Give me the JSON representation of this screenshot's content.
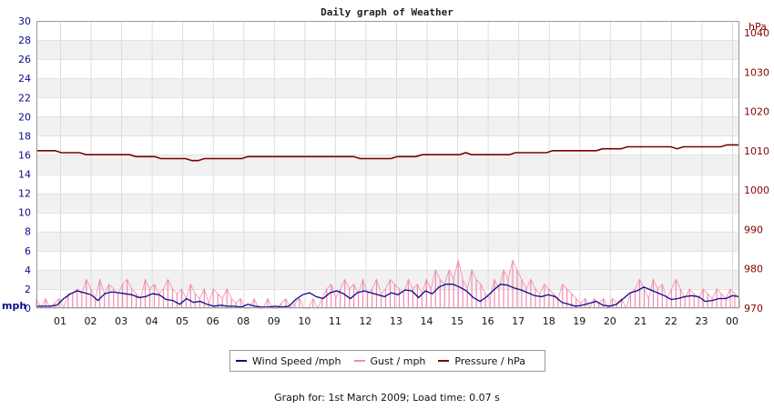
{
  "chart_data": {
    "type": "line",
    "title": "Daily graph of Weather",
    "left_axis": {
      "unit": "mph",
      "ylim": [
        0,
        30
      ],
      "ticks": [
        "0",
        "2",
        "4",
        "6",
        "8",
        "10",
        "12",
        "14",
        "16",
        "18",
        "20",
        "22",
        "24",
        "26",
        "28",
        "30"
      ]
    },
    "right_axis": {
      "unit": "hPa",
      "ylim": [
        970,
        1043
      ],
      "ticks": [
        "970",
        "980",
        "990",
        "1000",
        "1010",
        "1020",
        "1030",
        "1040"
      ]
    },
    "x_ticks": [
      "01",
      "02",
      "03",
      "04",
      "05",
      "06",
      "08",
      "09",
      "10",
      "11",
      "12",
      "13",
      "14",
      "15",
      "16",
      "17",
      "18",
      "19",
      "20",
      "21",
      "22",
      "23",
      "00"
    ],
    "grid": "horizontal bands + vertical lines",
    "series": [
      {
        "name": "Wind Speed /mph",
        "color": "#0b0b8a",
        "axis": "left",
        "values": [
          0.2,
          0.2,
          0.2,
          0.3,
          1.0,
          1.5,
          1.8,
          1.6,
          1.4,
          0.8,
          1.5,
          1.7,
          1.6,
          1.5,
          1.4,
          1.1,
          1.2,
          1.5,
          1.4,
          0.9,
          0.8,
          0.4,
          1.0,
          0.6,
          0.7,
          0.4,
          0.2,
          0.3,
          0.2,
          0.2,
          0.1,
          0.4,
          0.2,
          0.1,
          0.1,
          0.2,
          0.1,
          0.2,
          0.9,
          1.4,
          1.6,
          1.2,
          1.0,
          1.6,
          1.8,
          1.5,
          1.0,
          1.6,
          1.8,
          1.6,
          1.4,
          1.2,
          1.6,
          1.4,
          1.9,
          1.8,
          1.1,
          1.8,
          1.5,
          2.2,
          2.5,
          2.5,
          2.2,
          1.8,
          1.1,
          0.7,
          1.2,
          1.9,
          2.5,
          2.4,
          2.1,
          1.9,
          1.6,
          1.3,
          1.2,
          1.4,
          1.2,
          0.6,
          0.4,
          0.2,
          0.3,
          0.5,
          0.7,
          0.3,
          0.2,
          0.4,
          1.0,
          1.6,
          1.8,
          2.2,
          1.9,
          1.6,
          1.3,
          0.9,
          1.0,
          1.2,
          1.3,
          1.2,
          0.7,
          0.8,
          1.0,
          1.0,
          1.3,
          1.2
        ]
      },
      {
        "name": "Gust / mph",
        "color": "#f28bb0",
        "axis": "left",
        "values": [
          1.0,
          0,
          1.0,
          0,
          0.5,
          1.0,
          0,
          1.5,
          1.5,
          2.0,
          1.5,
          3.0,
          2.0,
          1.0,
          3.0,
          1.5,
          2.5,
          2.0,
          1.5,
          2.5,
          3.0,
          2.0,
          1.5,
          1.0,
          3.0,
          2.0,
          2.5,
          1.5,
          2.0,
          3.0,
          2.0,
          1.5,
          2.0,
          1.0,
          2.5,
          1.5,
          1.0,
          2.0,
          0.5,
          2.0,
          1.5,
          1.0,
          2.0,
          1.0,
          0.5,
          1.0,
          0,
          0,
          1.0,
          0,
          0,
          1.0,
          0,
          0,
          0.5,
          1.0,
          0,
          0.5,
          1.0,
          0,
          0,
          1.0,
          0,
          1.0,
          2.0,
          2.5,
          1.0,
          2.0,
          3.0,
          2.0,
          2.5,
          1.5,
          3.0,
          1.5,
          2.0,
          3.0,
          1.5,
          2.0,
          3.0,
          2.5,
          2.0,
          1.5,
          3.0,
          2.0,
          2.5,
          1.5,
          3.0,
          2.0,
          4.0,
          3.0,
          2.5,
          4.0,
          3.0,
          5.0,
          3.0,
          2.0,
          4.0,
          3.0,
          2.5,
          1.5,
          1.0,
          3.0,
          2.0,
          4.0,
          3.0,
          5.0,
          4.0,
          3.0,
          2.0,
          3.0,
          2.0,
          1.5,
          2.5,
          2.0,
          1.5,
          1.0,
          2.5,
          2.0,
          1.5,
          1.0,
          0.5,
          1.0,
          0,
          1.0,
          0.5,
          1.0,
          0,
          1.0,
          0.5,
          1.0,
          0,
          1.5,
          2.0,
          3.0,
          2.0,
          1.0,
          3.0,
          2.0,
          2.5,
          1.0,
          2.0,
          3.0,
          2.0,
          1.0,
          2.0,
          1.5,
          1.0,
          2.0,
          1.5,
          1.0,
          2.0,
          1.5,
          1.0,
          2.0,
          1.5,
          1.0
        ]
      },
      {
        "name": "Pressure / hPa",
        "color": "#7a0000",
        "axis": "right",
        "values": [
          1010,
          1010,
          1010,
          1010,
          1009.5,
          1009.5,
          1009.5,
          1009.5,
          1009,
          1009,
          1009,
          1009,
          1009,
          1009,
          1009,
          1009,
          1008.5,
          1008.5,
          1008.5,
          1008.5,
          1008,
          1008,
          1008,
          1008,
          1008,
          1007.5,
          1007.5,
          1008,
          1008,
          1008,
          1008,
          1008,
          1008,
          1008,
          1008.5,
          1008.5,
          1008.5,
          1008.5,
          1008.5,
          1008.5,
          1008.5,
          1008.5,
          1008.5,
          1008.5,
          1008.5,
          1008.5,
          1008.5,
          1008.5,
          1008.5,
          1008.5,
          1008.5,
          1008.5,
          1008,
          1008,
          1008,
          1008,
          1008,
          1008,
          1008.5,
          1008.5,
          1008.5,
          1008.5,
          1009,
          1009,
          1009,
          1009,
          1009,
          1009,
          1009,
          1009.5,
          1009,
          1009,
          1009,
          1009,
          1009,
          1009,
          1009,
          1009.5,
          1009.5,
          1009.5,
          1009.5,
          1009.5,
          1009.5,
          1010,
          1010,
          1010,
          1010,
          1010,
          1010,
          1010,
          1010,
          1010.5,
          1010.5,
          1010.5,
          1010.5,
          1011,
          1011,
          1011,
          1011,
          1011,
          1011,
          1011,
          1011,
          1010.5,
          1011,
          1011,
          1011,
          1011,
          1011,
          1011,
          1011,
          1011.5,
          1011.5,
          1011.5
        ]
      }
    ]
  },
  "legend": {
    "items": [
      {
        "label": "Wind Speed /mph",
        "color": "#0b0b8a"
      },
      {
        "label": "Gust / mph",
        "color": "#f28bb0"
      },
      {
        "label": "Pressure / hPa",
        "color": "#7a0000"
      }
    ]
  },
  "footer": {
    "text": "Graph for: 1st March 2009; Load time: 0.07 s"
  }
}
